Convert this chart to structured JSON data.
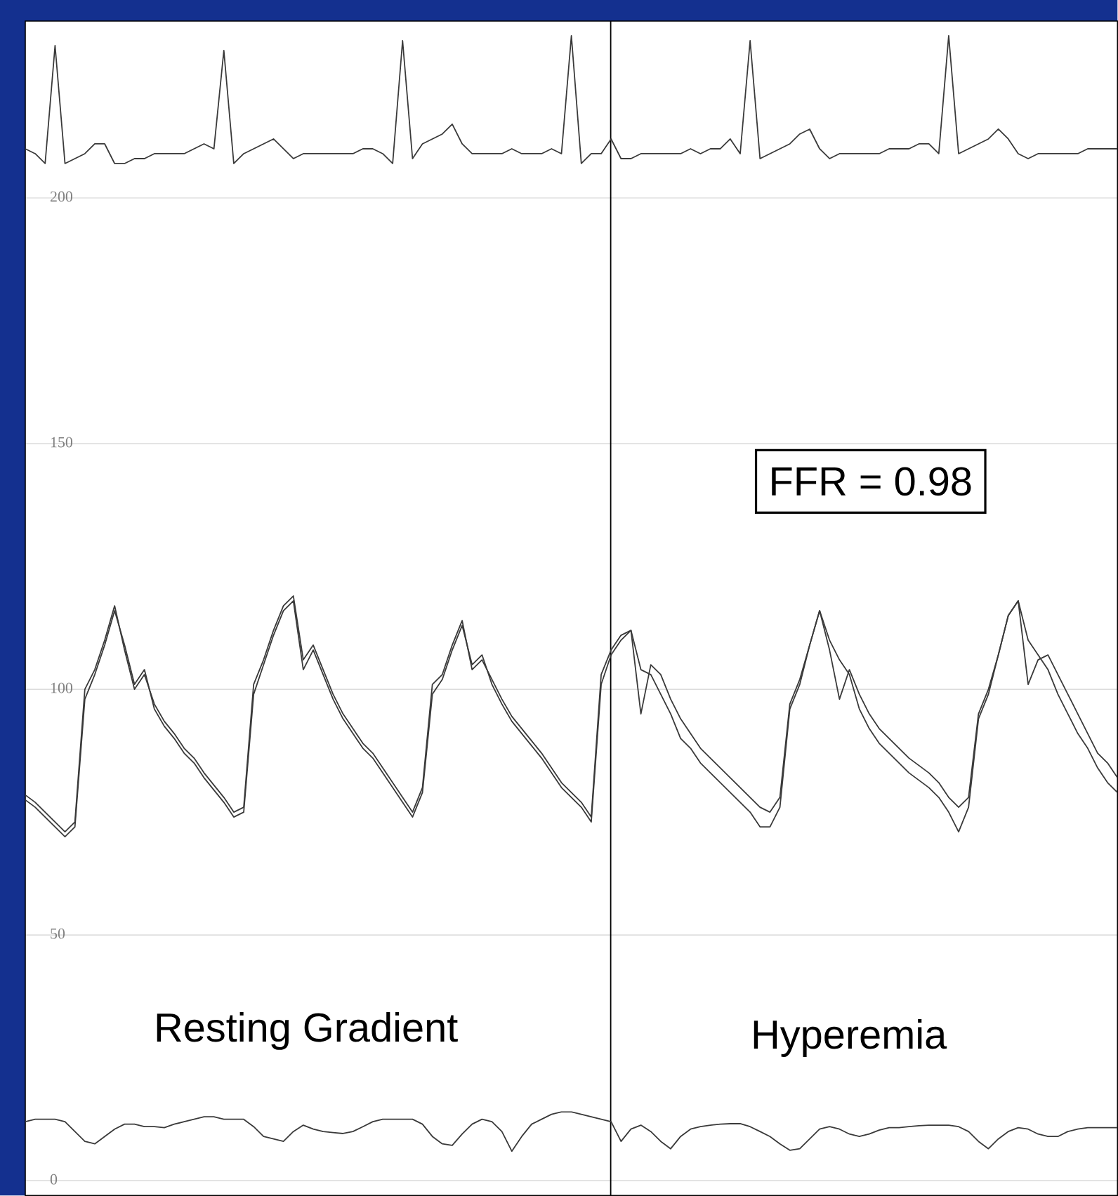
{
  "chart_data": {
    "type": "line",
    "annotations": [
      "Resting Gradient",
      "Hyperemia",
      "FFR = 0.98"
    ],
    "categories": [
      null,
      null,
      null,
      null,
      null,
      null,
      null,
      null,
      null,
      null,
      null,
      null,
      null,
      null,
      null,
      null,
      null,
      null,
      null,
      null,
      null,
      null,
      null,
      null,
      null,
      null,
      null,
      null,
      null,
      null,
      null,
      null,
      null,
      null,
      null,
      null,
      null,
      null,
      null,
      null,
      null,
      null,
      null,
      null,
      null,
      null,
      null,
      null,
      null,
      null,
      null,
      null,
      null,
      null,
      null,
      null,
      null,
      null,
      null,
      null,
      null,
      null,
      null,
      null,
      null,
      null,
      null,
      null,
      null,
      null,
      null,
      null,
      null,
      null,
      null,
      null,
      null,
      null,
      null,
      null,
      null,
      null,
      null,
      null,
      null,
      null,
      null,
      null,
      null,
      null,
      null,
      null,
      null,
      null,
      null,
      null,
      null,
      null,
      null,
      null,
      null,
      null,
      null,
      null,
      null,
      null,
      null,
      null,
      null,
      null,
      null
    ],
    "series": [
      {
        "color": "#3a3a3a",
        "values": [
          210,
          209,
          207,
          231,
          207,
          208,
          209,
          211,
          211,
          207,
          207,
          208,
          208,
          209,
          209,
          209,
          209,
          210,
          211,
          210,
          230,
          207,
          209,
          210,
          211,
          212,
          210,
          208,
          209,
          209,
          209,
          209,
          209,
          209,
          210,
          210,
          209,
          207,
          232,
          208,
          211,
          212,
          213,
          215,
          211,
          209,
          209,
          209,
          209,
          210,
          209,
          209,
          209,
          210,
          209,
          233,
          207,
          209,
          209,
          212,
          208,
          208,
          209,
          209,
          209,
          209,
          209,
          210,
          209,
          210,
          210,
          212,
          209,
          232,
          208,
          209,
          210,
          211,
          213,
          214,
          210,
          208,
          209,
          209,
          209,
          209,
          209,
          210,
          210,
          210,
          211,
          211,
          209,
          233,
          209,
          210,
          211,
          212,
          214,
          212,
          209,
          208,
          209,
          209,
          209,
          209,
          209,
          210,
          210,
          210,
          210
        ]
      },
      {
        "color": "#3a3a3a",
        "values": [
          78.5,
          77,
          75,
          73,
          71,
          73,
          100,
          104,
          110,
          117,
          108,
          100,
          103,
          97,
          93.5,
          91,
          88,
          86,
          83,
          80.5,
          78,
          75,
          76,
          101,
          106,
          112,
          117,
          119,
          106,
          109,
          104,
          99,
          95,
          92,
          89,
          87,
          84,
          81,
          78,
          75,
          80,
          101,
          103,
          109,
          114,
          104,
          106,
          102,
          98,
          94.5,
          92,
          89.5,
          87,
          84,
          81,
          79,
          77,
          74,
          103,
          108,
          111,
          112,
          95,
          105,
          103,
          98,
          94,
          91,
          88,
          86,
          84,
          82,
          80,
          78,
          76,
          75,
          78,
          97,
          102,
          109,
          116,
          108,
          98,
          104,
          99,
          95,
          92,
          90,
          88,
          86,
          84.5,
          83,
          81,
          78,
          76,
          78,
          95,
          100,
          107,
          115,
          118,
          101,
          106,
          107,
          103,
          99,
          95,
          91,
          87,
          85,
          82
        ]
      },
      {
        "color": "#3a3a3a",
        "values": [
          77.5,
          76,
          74,
          72,
          70,
          72,
          98,
          103,
          109,
          116,
          109,
          101,
          104,
          96,
          92.5,
          90,
          87,
          85,
          82,
          79.5,
          77,
          74,
          75,
          99,
          105,
          111,
          116,
          118,
          104,
          108,
          103,
          98,
          94,
          91,
          88,
          86,
          83,
          80,
          77,
          74,
          79,
          99,
          102,
          108,
          113,
          105,
          107,
          101,
          97,
          93.5,
          91,
          88.5,
          86,
          83,
          80,
          78,
          76,
          73,
          101,
          107,
          110,
          112,
          104,
          103,
          99,
          95,
          90,
          88,
          85,
          83,
          81,
          79,
          77,
          75,
          72,
          72,
          76,
          96,
          101,
          109,
          116,
          110,
          106,
          103,
          96,
          92,
          89,
          87,
          85,
          83,
          81.5,
          80,
          78,
          75,
          71,
          76,
          94,
          99,
          107,
          115,
          118,
          110,
          107,
          104,
          99,
          95,
          91,
          88,
          84,
          81,
          79
        ]
      },
      {
        "color": "#3a3a3a",
        "values": [
          12,
          12.5,
          12.5,
          12.5,
          12,
          10,
          8,
          7.5,
          9,
          10.5,
          11.5,
          11.5,
          11,
          11,
          10.8,
          11.5,
          12,
          12.5,
          13,
          13,
          12.5,
          12.5,
          12.5,
          11,
          9,
          8.5,
          8,
          10,
          11.3,
          10.5,
          10,
          9.8,
          9.6,
          10,
          11,
          12,
          12.5,
          12.5,
          12.5,
          12.5,
          11.5,
          9,
          7.5,
          7.2,
          9.5,
          11.5,
          12.5,
          12,
          10,
          6,
          9,
          11.5,
          12.5,
          13.5,
          14,
          14,
          13.5,
          13,
          12.5,
          12,
          8,
          10.5,
          11.3,
          10,
          8,
          6.5,
          9,
          10.5,
          11,
          11.3,
          11.5,
          11.6,
          11.6,
          11,
          10,
          9,
          7.5,
          6.2,
          6.5,
          8.5,
          10.5,
          11,
          10.5,
          9.5,
          9,
          9.5,
          10.3,
          10.8,
          10.8,
          11,
          11.2,
          11.3,
          11.3,
          11.3,
          11,
          10,
          8,
          6.5,
          8.5,
          10,
          10.8,
          10.5,
          9.5,
          9,
          9,
          10,
          10.5,
          10.8,
          10.8,
          10.8,
          10.8
        ]
      }
    ],
    "ylim": [
      -3,
      236
    ],
    "yticks": [
      0,
      50,
      100,
      150,
      200
    ],
    "grid": "y"
  }
}
